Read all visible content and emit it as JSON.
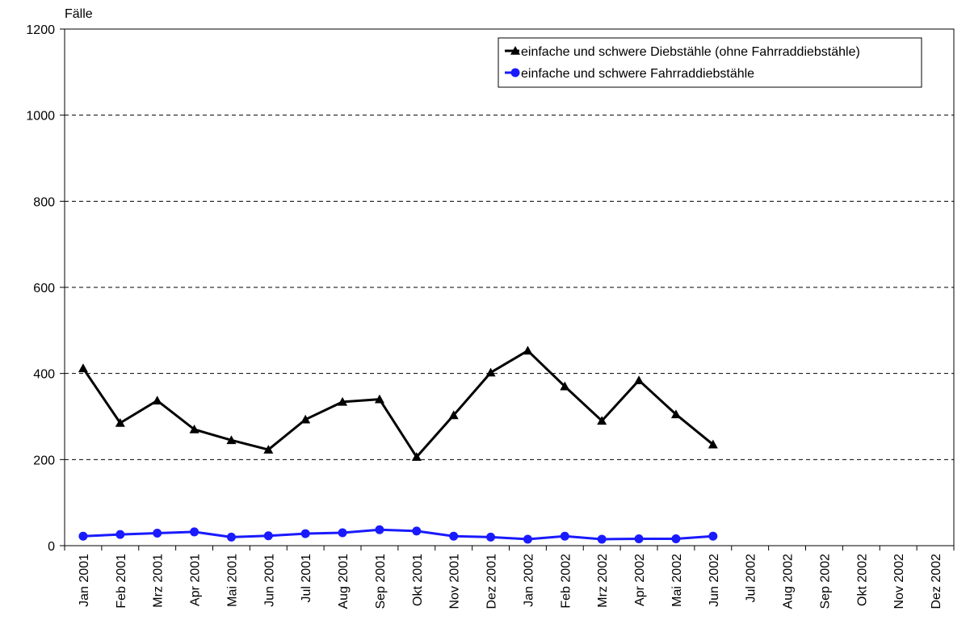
{
  "chart_data": {
    "type": "line",
    "ylabel": "Fälle",
    "ylim": [
      0,
      1200
    ],
    "yticks": [
      0,
      200,
      400,
      600,
      800,
      1000,
      1200
    ],
    "grid": "horizontal-dashed",
    "legend_position": "top-right",
    "categories": [
      "Jan 2001",
      "Feb 2001",
      "Mrz 2001",
      "Apr 2001",
      "Mai 2001",
      "Jun 2001",
      "Jul 2001",
      "Aug 2001",
      "Sep 2001",
      "Okt 2001",
      "Nov 2001",
      "Dez 2001",
      "Jan 2002",
      "Feb 2002",
      "Mrz 2002",
      "Apr 2002",
      "Mai 2002",
      "Jun 2002",
      "Jul 2002",
      "Aug 2002",
      "Sep 2002",
      "Okt 2002",
      "Nov 2002",
      "Dez 2002"
    ],
    "series": [
      {
        "name": "einfache und schwere Diebstähle (ohne Fahrraddiebstähle)",
        "color": "#000000",
        "marker": "triangle",
        "values": [
          412,
          285,
          337,
          270,
          245,
          223,
          293,
          334,
          340,
          206,
          303,
          402,
          453,
          370,
          290,
          384,
          305,
          235,
          null,
          null,
          null,
          null,
          null,
          null
        ]
      },
      {
        "name": "einfache und schwere Fahrraddiebstähle",
        "color": "#1a1aff",
        "marker": "circle",
        "values": [
          22,
          26,
          29,
          32,
          20,
          23,
          28,
          30,
          37,
          34,
          22,
          20,
          15,
          22,
          15,
          16,
          16,
          22,
          null,
          null,
          null,
          null,
          null,
          null
        ]
      }
    ]
  }
}
